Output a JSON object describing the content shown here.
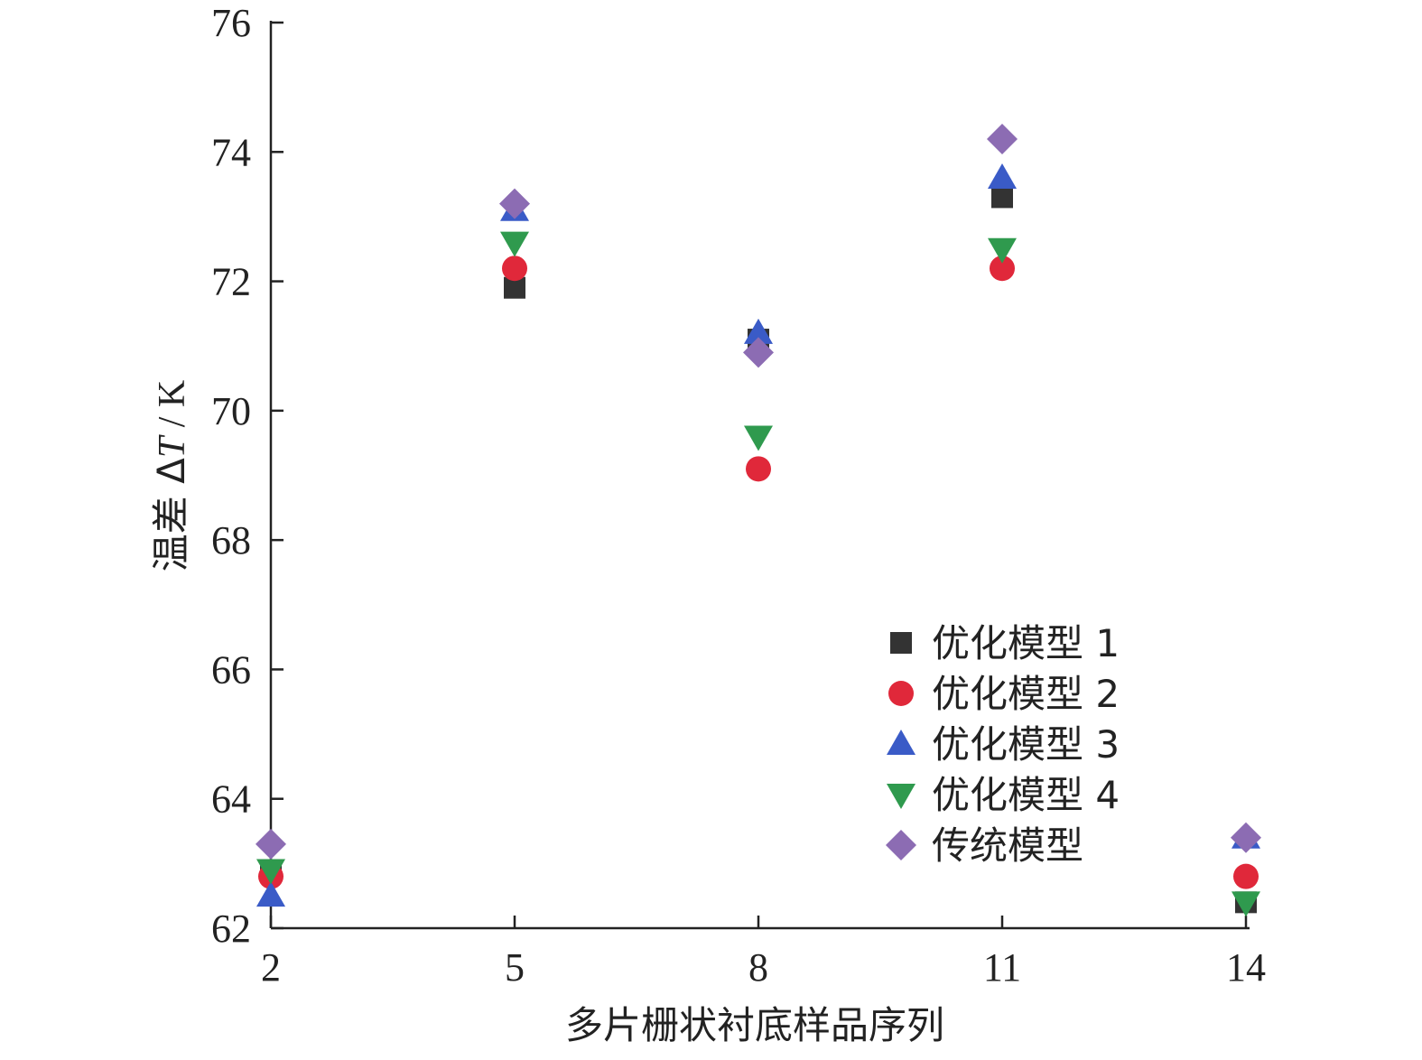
{
  "chart_data": {
    "type": "scatter",
    "xlabel": "多片栅状衬底样品序列",
    "ylabel_prefix": "温差 Δ",
    "ylabel_var": "T",
    "ylabel_suffix": " / K",
    "xlim": [
      2,
      14
    ],
    "ylim": [
      62,
      76
    ],
    "xticks": [
      2,
      5,
      8,
      11,
      14
    ],
    "yticks": [
      62,
      64,
      66,
      68,
      70,
      72,
      74,
      76
    ],
    "legend_position": "bottom-right",
    "grid": false,
    "series": [
      {
        "name": "优化模型 1",
        "marker": "square",
        "color": "#333333",
        "points": [
          [
            2,
            62.9
          ],
          [
            5,
            71.9
          ],
          [
            8,
            71.1
          ],
          [
            11,
            73.3
          ],
          [
            14,
            62.4
          ]
        ]
      },
      {
        "name": "优化模型 2",
        "marker": "circle",
        "color": "#e0283a",
        "points": [
          [
            2,
            62.8
          ],
          [
            5,
            72.2
          ],
          [
            8,
            69.1
          ],
          [
            11,
            72.2
          ],
          [
            14,
            62.8
          ]
        ]
      },
      {
        "name": "优化模型 3",
        "marker": "triangle-up",
        "color": "#3a5bc7",
        "points": [
          [
            2,
            62.5
          ],
          [
            5,
            73.1
          ],
          [
            8,
            71.2
          ],
          [
            11,
            73.6
          ],
          [
            14,
            63.4
          ]
        ]
      },
      {
        "name": "优化模型 4",
        "marker": "triangle-down",
        "color": "#2f9a4e",
        "points": [
          [
            2,
            62.9
          ],
          [
            5,
            72.6
          ],
          [
            8,
            69.6
          ],
          [
            11,
            72.5
          ],
          [
            14,
            62.4
          ]
        ]
      },
      {
        "name": "传统模型",
        "marker": "diamond",
        "color": "#8c6cb3",
        "points": [
          [
            2,
            63.3
          ],
          [
            5,
            73.2
          ],
          [
            8,
            70.9
          ],
          [
            11,
            74.2
          ],
          [
            14,
            63.4
          ]
        ]
      }
    ]
  }
}
